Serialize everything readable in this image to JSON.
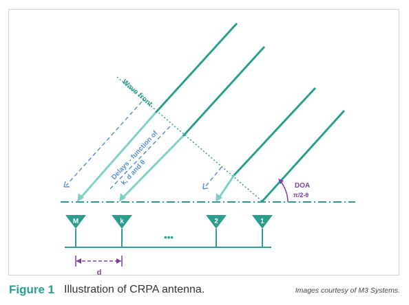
{
  "diagram": {
    "wave_front_label": "Wave front",
    "delays_label_line1": "Delays - function of",
    "delays_label_line2": "k, d and θ",
    "doa_label": "DOA",
    "doa_angle": "π/2-θ",
    "spacing_label": "d",
    "ellipsis": "•••",
    "antennas": [
      "M",
      "k",
      "2",
      "1"
    ]
  },
  "caption": {
    "figure_number": "Figure 1",
    "figure_text": "Illustration of CRPA antenna.",
    "credit": "Images courtesy of M3 Systems."
  },
  "colors": {
    "teal": "#2a9d8f",
    "light_teal": "#7fd1c7",
    "dashed_blue": "#5b8fd6",
    "purple": "#7b3fa0"
  }
}
